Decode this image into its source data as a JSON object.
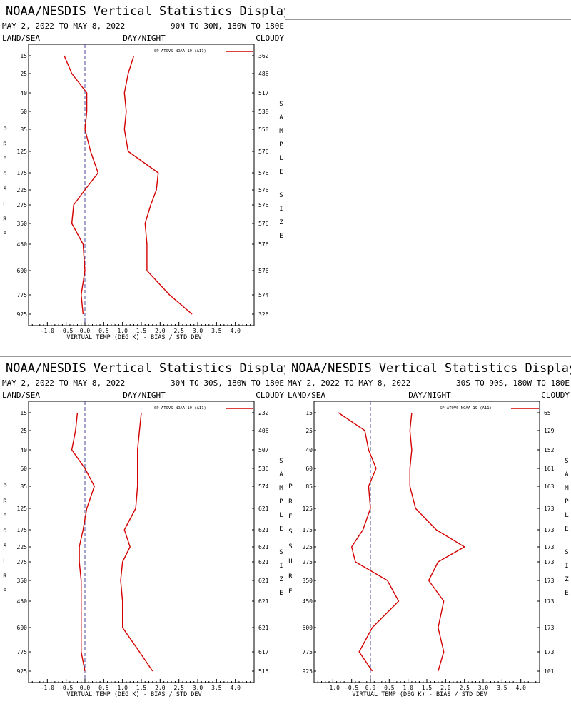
{
  "colors": {
    "series": "#d40000",
    "zero_line": "#4a4a9a",
    "frame": "#000000"
  },
  "chart_data": [
    {
      "type": "line",
      "title": "NOAA/NESDIS Vertical Statistics Display",
      "date_range": "MAY 2, 2022 TO MAY 8, 2022",
      "region": "90N TO 30N, 180W TO 180E",
      "surface": "LAND/SEA",
      "time_of_day": "DAY/NIGHT",
      "sky": "CLOUDY",
      "xlabel": "VIRTUAL TEMP (DEG K) - BIAS / STD DEV",
      "ylabel": "PRESSURE",
      "y2label": "SAMPLE SIZE",
      "legend": "SP ATOVS NOAA-19 (A11)",
      "xlim": [
        -1.5,
        4.5
      ],
      "xticks": [
        "-1.0",
        "-0.5",
        "0.0",
        "0.5",
        "1.0",
        "1.5",
        "2.0",
        "2.5",
        "3.0",
        "3.5",
        "4.0"
      ],
      "pressure_levels": [
        "15",
        "25",
        "40",
        "60",
        "85",
        "125",
        "175",
        "225",
        "275",
        "350",
        "450",
        "600",
        "775",
        "925"
      ],
      "sample_size": [
        "362",
        "486",
        "517",
        "538",
        "550",
        "576",
        "576",
        "576",
        "576",
        "576",
        "576",
        "576",
        "574",
        "326"
      ],
      "series": [
        {
          "name": "BIAS",
          "values": [
            -0.55,
            -0.35,
            0.05,
            0.05,
            0.0,
            0.15,
            0.35,
            0.0,
            -0.3,
            -0.35,
            -0.05,
            0.0,
            -0.1,
            -0.05
          ]
        },
        {
          "name": "STD DEV",
          "values": [
            1.3,
            1.15,
            1.05,
            1.1,
            1.05,
            1.15,
            1.95,
            1.9,
            1.75,
            1.6,
            1.65,
            1.65,
            2.25,
            2.85
          ]
        }
      ]
    },
    {
      "type": "line",
      "title": "NOAA/NESDIS Vertical Statistics Display",
      "date_range": "MAY 2, 2022 TO MAY 8, 2022",
      "region": "30N TO 30S, 180W TO 180E",
      "surface": "LAND/SEA",
      "time_of_day": "DAY/NIGHT",
      "sky": "CLOUDY",
      "xlabel": "VIRTUAL TEMP (DEG K) - BIAS / STD DEV",
      "ylabel": "PRESSURE",
      "y2label": "SAMPLE SIZE",
      "legend": "SP ATOVS NOAA-19 (A11)",
      "xlim": [
        -1.5,
        4.5
      ],
      "xticks": [
        "-1.0",
        "-0.5",
        "0.0",
        "0.5",
        "1.0",
        "1.5",
        "2.0",
        "2.5",
        "3.0",
        "3.5",
        "4.0"
      ],
      "pressure_levels": [
        "15",
        "25",
        "40",
        "60",
        "85",
        "125",
        "175",
        "225",
        "275",
        "350",
        "450",
        "600",
        "775",
        "925"
      ],
      "sample_size": [
        "232",
        "406",
        "507",
        "536",
        "574",
        "621",
        "621",
        "621",
        "621",
        "621",
        "621",
        "621",
        "617",
        "515"
      ],
      "series": [
        {
          "name": "BIAS",
          "values": [
            -0.2,
            -0.25,
            -0.35,
            0.0,
            0.25,
            0.05,
            -0.05,
            -0.15,
            -0.15,
            -0.1,
            -0.1,
            -0.1,
            -0.1,
            0.0
          ]
        },
        {
          "name": "STD DEV",
          "values": [
            1.5,
            1.45,
            1.4,
            1.4,
            1.4,
            1.35,
            1.05,
            1.2,
            1.0,
            0.95,
            1.0,
            1.0,
            1.45,
            1.8
          ]
        }
      ]
    },
    {
      "type": "line",
      "title": "NOAA/NESDIS Vertical Statistics Display",
      "date_range": "MAY 2, 2022 TO MAY 8, 2022",
      "region": "30S TO 90S, 180W TO 180E",
      "surface": "LAND/SEA",
      "time_of_day": "DAY/NIGHT",
      "sky": "CLOUDY",
      "xlabel": "VIRTUAL TEMP (DEG K) - BIAS / STD DEV",
      "ylabel": "PRESSURE",
      "y2label": "SAMPLE SIZE",
      "legend": "SP ATOVS NOAA-19 (A11)",
      "xlim": [
        -1.5,
        4.5
      ],
      "xticks": [
        "-1.0",
        "-0.5",
        "0.0",
        "0.5",
        "1.0",
        "1.5",
        "2.0",
        "2.5",
        "3.0",
        "3.5",
        "4.0"
      ],
      "pressure_levels": [
        "15",
        "25",
        "40",
        "60",
        "85",
        "125",
        "175",
        "225",
        "275",
        "350",
        "450",
        "600",
        "775",
        "925"
      ],
      "sample_size": [
        "65",
        "129",
        "152",
        "161",
        "163",
        "173",
        "173",
        "173",
        "173",
        "173",
        "173",
        "173",
        "173",
        "101"
      ],
      "series": [
        {
          "name": "BIAS",
          "values": [
            -0.85,
            -0.15,
            -0.05,
            0.15,
            -0.05,
            0.0,
            -0.2,
            -0.5,
            -0.4,
            0.45,
            0.75,
            0.05,
            -0.3,
            0.05
          ]
        },
        {
          "name": "STD DEV",
          "values": [
            1.1,
            1.05,
            1.1,
            1.05,
            1.05,
            1.2,
            1.75,
            2.5,
            1.8,
            1.55,
            1.95,
            1.8,
            1.95,
            1.8
          ]
        }
      ]
    }
  ]
}
